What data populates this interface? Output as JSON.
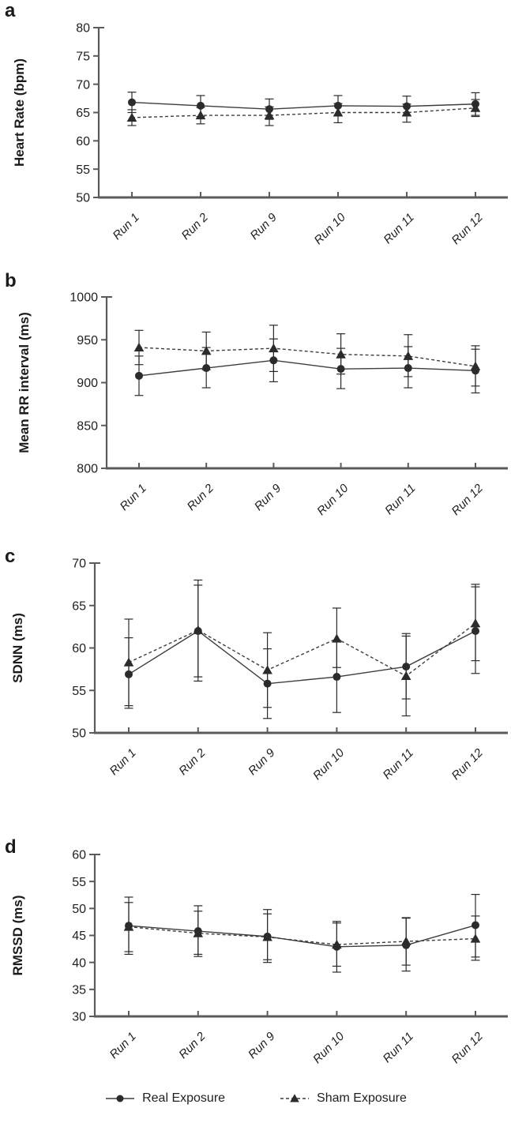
{
  "figure_colors": {
    "ink": "#2b2b2b",
    "axis": "#5b5b5b"
  },
  "legend": {
    "position": "bottom",
    "entries": [
      {
        "label": "Real Exposure",
        "marker": "circle",
        "line": "solid"
      },
      {
        "label": "Sham Exposure",
        "marker": "triangle",
        "line": "dashed"
      }
    ]
  },
  "chart_data": [
    {
      "type": "line",
      "panel": "a",
      "ylabel": "Heart Rate (bpm)",
      "xlabel": "",
      "ylim": [
        50,
        80
      ],
      "yticks": [
        50,
        55,
        60,
        65,
        70,
        75,
        80
      ],
      "grid": false,
      "categories": [
        "Run 1",
        "Run 2",
        "Run 9",
        "Run 10",
        "Run 11",
        "Run 12"
      ],
      "series": [
        {
          "name": "Real Exposure",
          "marker": "circle",
          "line": "solid",
          "values": [
            66.8,
            66.2,
            65.6,
            66.2,
            66.1,
            66.5
          ],
          "err_lo": [
            65.0,
            64.3,
            63.8,
            64.4,
            64.4,
            64.5
          ],
          "err_hi": [
            68.6,
            68.0,
            67.4,
            68.0,
            67.9,
            68.5
          ]
        },
        {
          "name": "Sham Exposure",
          "marker": "triangle",
          "line": "dashed",
          "values": [
            64.1,
            64.5,
            64.5,
            65.0,
            65.0,
            65.8
          ],
          "err_lo": [
            62.7,
            63.0,
            62.7,
            63.2,
            63.3,
            64.3
          ],
          "err_hi": [
            65.5,
            65.9,
            66.0,
            66.6,
            66.5,
            67.3
          ]
        }
      ]
    },
    {
      "type": "line",
      "panel": "b",
      "ylabel": "Mean RR interval (ms)",
      "xlabel": "",
      "ylim": [
        800,
        1000
      ],
      "yticks": [
        800,
        850,
        900,
        950,
        1000
      ],
      "grid": false,
      "categories": [
        "Run 1",
        "Run 2",
        "Run 9",
        "Run 10",
        "Run 11",
        "Run 12"
      ],
      "series": [
        {
          "name": "Real Exposure",
          "marker": "circle",
          "line": "solid",
          "values": [
            908,
            917,
            926,
            916,
            917,
            914
          ],
          "err_lo": [
            885,
            894,
            901,
            893,
            894,
            888
          ],
          "err_hi": [
            931,
            941,
            951,
            940,
            942,
            939
          ]
        },
        {
          "name": "Sham Exposure",
          "marker": "triangle",
          "line": "dashed",
          "values": [
            941,
            937,
            940,
            933,
            931,
            919
          ],
          "err_lo": [
            921,
            915,
            913,
            910,
            907,
            896
          ],
          "err_hi": [
            961,
            959,
            967,
            957,
            956,
            943
          ]
        }
      ]
    },
    {
      "type": "line",
      "panel": "c",
      "ylabel": "SDNN (ms)",
      "xlabel": "",
      "ylim": [
        50,
        70
      ],
      "yticks": [
        50,
        55,
        60,
        65,
        70
      ],
      "grid": false,
      "categories": [
        "Run 1",
        "Run 2",
        "Run 9",
        "Run 10",
        "Run 11",
        "Run 12"
      ],
      "series": [
        {
          "name": "Real Exposure",
          "marker": "circle",
          "line": "solid",
          "values": [
            56.9,
            62.0,
            55.8,
            56.6,
            57.8,
            62.0
          ],
          "err_lo": [
            52.9,
            56.6,
            51.7,
            52.4,
            54.0,
            57.0
          ],
          "err_hi": [
            61.2,
            67.4,
            59.9,
            60.9,
            61.7,
            67.2
          ]
        },
        {
          "name": "Sham Exposure",
          "marker": "triangle",
          "line": "dashed",
          "values": [
            58.3,
            62.1,
            57.4,
            61.1,
            56.7,
            62.9
          ],
          "err_lo": [
            53.2,
            56.1,
            53.0,
            57.7,
            52.0,
            58.5
          ],
          "err_hi": [
            63.4,
            68.0,
            61.8,
            64.7,
            61.4,
            67.5
          ]
        }
      ]
    },
    {
      "type": "line",
      "panel": "d",
      "ylabel": "RMSSD (ms)",
      "xlabel": "",
      "ylim": [
        30,
        60
      ],
      "yticks": [
        30,
        35,
        40,
        45,
        50,
        55,
        60
      ],
      "grid": false,
      "categories": [
        "Run 1",
        "Run 2",
        "Run 9",
        "Run 10",
        "Run 11",
        "Run 12"
      ],
      "series": [
        {
          "name": "Real Exposure",
          "marker": "circle",
          "line": "solid",
          "values": [
            46.8,
            45.8,
            44.8,
            42.9,
            43.2,
            46.9
          ],
          "err_lo": [
            41.5,
            41.1,
            40.0,
            38.2,
            38.4,
            41.0
          ],
          "err_hi": [
            52.1,
            50.5,
            49.8,
            47.6,
            48.2,
            52.6
          ]
        },
        {
          "name": "Sham Exposure",
          "marker": "triangle",
          "line": "dashed",
          "values": [
            46.6,
            45.4,
            44.7,
            43.3,
            43.9,
            44.4
          ],
          "err_lo": [
            42.0,
            41.5,
            40.5,
            39.3,
            39.5,
            40.4
          ],
          "err_hi": [
            51.1,
            49.5,
            49.0,
            47.3,
            48.3,
            48.6
          ]
        }
      ]
    }
  ]
}
